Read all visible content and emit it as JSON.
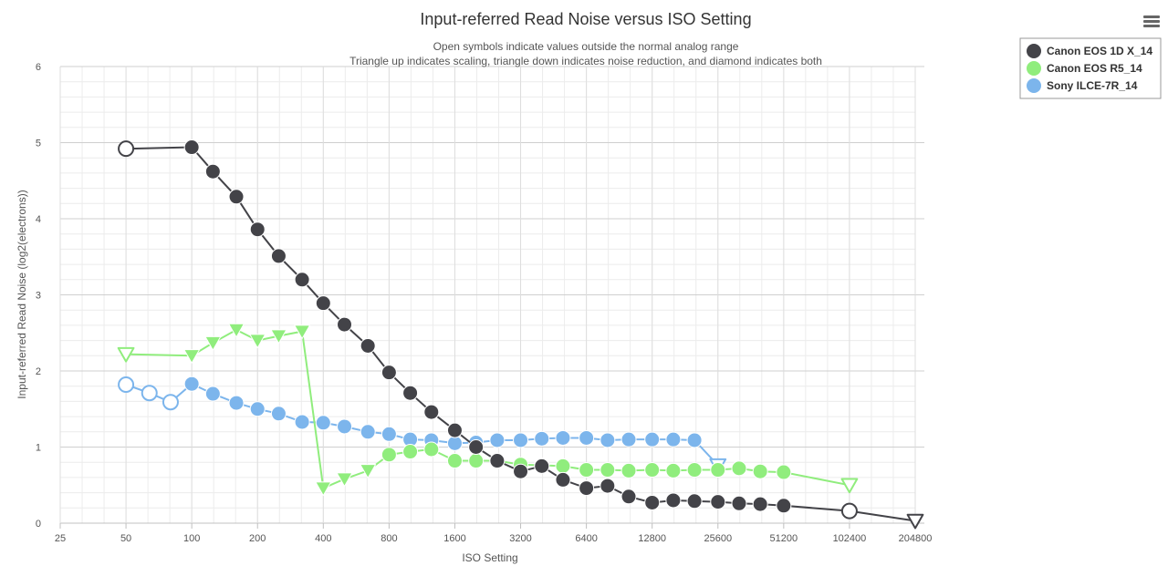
{
  "chart_data": {
    "type": "line",
    "title": "Input-referred Read Noise versus ISO Setting",
    "subtitle_lines": [
      "Open symbols indicate values outside the normal analog range",
      "Triangle up indicates scaling, triangle down indicates noise reduction, and diamond indicates both"
    ],
    "xlabel": "ISO Setting",
    "ylabel": "Input-referred Read Noise (log2(electrons))",
    "x_scale": "log2",
    "xlim": [
      25,
      204800
    ],
    "ylim": [
      0,
      6
    ],
    "x_ticks": [
      25,
      50,
      100,
      200,
      400,
      800,
      1600,
      3200,
      6400,
      12800,
      25600,
      51200,
      102400,
      204800
    ],
    "y_ticks": [
      0,
      1,
      2,
      3,
      4,
      5,
      6
    ],
    "grid": true,
    "legend_position": "top-right",
    "series": [
      {
        "name": "Canon EOS 1D X_14",
        "color": "#434348",
        "points": [
          {
            "x": 50,
            "y": 4.92,
            "m": "circle-open"
          },
          {
            "x": 100,
            "y": 4.94,
            "m": "circle"
          },
          {
            "x": 125,
            "y": 4.62,
            "m": "circle"
          },
          {
            "x": 160,
            "y": 4.29,
            "m": "circle"
          },
          {
            "x": 200,
            "y": 3.86,
            "m": "circle"
          },
          {
            "x": 250,
            "y": 3.51,
            "m": "circle"
          },
          {
            "x": 320,
            "y": 3.2,
            "m": "circle"
          },
          {
            "x": 400,
            "y": 2.89,
            "m": "circle"
          },
          {
            "x": 500,
            "y": 2.61,
            "m": "circle"
          },
          {
            "x": 640,
            "y": 2.33,
            "m": "circle"
          },
          {
            "x": 800,
            "y": 1.98,
            "m": "circle"
          },
          {
            "x": 1000,
            "y": 1.71,
            "m": "circle"
          },
          {
            "x": 1250,
            "y": 1.46,
            "m": "circle"
          },
          {
            "x": 1600,
            "y": 1.22,
            "m": "circle"
          },
          {
            "x": 2000,
            "y": 1.0,
            "m": "circle"
          },
          {
            "x": 2500,
            "y": 0.82,
            "m": "circle"
          },
          {
            "x": 3200,
            "y": 0.68,
            "m": "circle"
          },
          {
            "x": 4000,
            "y": 0.75,
            "m": "circle"
          },
          {
            "x": 5000,
            "y": 0.57,
            "m": "circle"
          },
          {
            "x": 6400,
            "y": 0.46,
            "m": "circle"
          },
          {
            "x": 8000,
            "y": 0.49,
            "m": "circle"
          },
          {
            "x": 10000,
            "y": 0.35,
            "m": "circle"
          },
          {
            "x": 12800,
            "y": 0.27,
            "m": "circle"
          },
          {
            "x": 16000,
            "y": 0.3,
            "m": "circle"
          },
          {
            "x": 20000,
            "y": 0.29,
            "m": "circle"
          },
          {
            "x": 25600,
            "y": 0.28,
            "m": "circle"
          },
          {
            "x": 32000,
            "y": 0.26,
            "m": "circle"
          },
          {
            "x": 40000,
            "y": 0.25,
            "m": "circle"
          },
          {
            "x": 51200,
            "y": 0.23,
            "m": "circle"
          },
          {
            "x": 102400,
            "y": 0.16,
            "m": "circle-open"
          },
          {
            "x": 204800,
            "y": 0.03,
            "m": "tri-down-open"
          }
        ]
      },
      {
        "name": "Canon EOS R5_14",
        "color": "#90ed7d",
        "points": [
          {
            "x": 50,
            "y": 2.22,
            "m": "tri-down-open"
          },
          {
            "x": 100,
            "y": 2.2,
            "m": "tri-down"
          },
          {
            "x": 125,
            "y": 2.37,
            "m": "tri-down"
          },
          {
            "x": 160,
            "y": 2.54,
            "m": "tri-down"
          },
          {
            "x": 200,
            "y": 2.4,
            "m": "tri-down"
          },
          {
            "x": 250,
            "y": 2.46,
            "m": "tri-down"
          },
          {
            "x": 320,
            "y": 2.52,
            "m": "tri-down"
          },
          {
            "x": 400,
            "y": 0.46,
            "m": "tri-down"
          },
          {
            "x": 500,
            "y": 0.58,
            "m": "tri-down"
          },
          {
            "x": 640,
            "y": 0.69,
            "m": "tri-down"
          },
          {
            "x": 800,
            "y": 0.9,
            "m": "circle"
          },
          {
            "x": 1000,
            "y": 0.94,
            "m": "circle"
          },
          {
            "x": 1250,
            "y": 0.97,
            "m": "circle"
          },
          {
            "x": 1600,
            "y": 0.82,
            "m": "circle"
          },
          {
            "x": 2000,
            "y": 0.82,
            "m": "circle"
          },
          {
            "x": 2500,
            "y": 0.82,
            "m": "circle"
          },
          {
            "x": 3200,
            "y": 0.77,
            "m": "circle"
          },
          {
            "x": 4000,
            "y": 0.76,
            "m": "circle"
          },
          {
            "x": 5000,
            "y": 0.75,
            "m": "circle"
          },
          {
            "x": 6400,
            "y": 0.7,
            "m": "circle"
          },
          {
            "x": 8000,
            "y": 0.7,
            "m": "circle"
          },
          {
            "x": 10000,
            "y": 0.69,
            "m": "circle"
          },
          {
            "x": 12800,
            "y": 0.7,
            "m": "circle"
          },
          {
            "x": 16000,
            "y": 0.69,
            "m": "circle"
          },
          {
            "x": 20000,
            "y": 0.7,
            "m": "circle"
          },
          {
            "x": 25600,
            "y": 0.7,
            "m": "circle"
          },
          {
            "x": 32000,
            "y": 0.72,
            "m": "circle"
          },
          {
            "x": 40000,
            "y": 0.68,
            "m": "circle"
          },
          {
            "x": 51200,
            "y": 0.67,
            "m": "circle"
          },
          {
            "x": 102400,
            "y": 0.5,
            "m": "tri-down-open"
          }
        ]
      },
      {
        "name": "Sony ILCE-7R_14",
        "color": "#7cb5ec",
        "points": [
          {
            "x": 50,
            "y": 1.82,
            "m": "circle-open"
          },
          {
            "x": 64,
            "y": 1.71,
            "m": "circle-open"
          },
          {
            "x": 80,
            "y": 1.59,
            "m": "circle-open"
          },
          {
            "x": 100,
            "y": 1.83,
            "m": "circle"
          },
          {
            "x": 125,
            "y": 1.7,
            "m": "circle"
          },
          {
            "x": 160,
            "y": 1.58,
            "m": "circle"
          },
          {
            "x": 200,
            "y": 1.5,
            "m": "circle"
          },
          {
            "x": 250,
            "y": 1.44,
            "m": "circle"
          },
          {
            "x": 320,
            "y": 1.33,
            "m": "circle"
          },
          {
            "x": 400,
            "y": 1.32,
            "m": "circle"
          },
          {
            "x": 500,
            "y": 1.27,
            "m": "circle"
          },
          {
            "x": 640,
            "y": 1.2,
            "m": "circle"
          },
          {
            "x": 800,
            "y": 1.17,
            "m": "circle"
          },
          {
            "x": 1000,
            "y": 1.1,
            "m": "circle"
          },
          {
            "x": 1250,
            "y": 1.09,
            "m": "circle"
          },
          {
            "x": 1600,
            "y": 1.05,
            "m": "circle"
          },
          {
            "x": 2000,
            "y": 1.06,
            "m": "circle"
          },
          {
            "x": 2500,
            "y": 1.09,
            "m": "circle"
          },
          {
            "x": 3200,
            "y": 1.09,
            "m": "circle"
          },
          {
            "x": 4000,
            "y": 1.11,
            "m": "circle"
          },
          {
            "x": 5000,
            "y": 1.12,
            "m": "circle"
          },
          {
            "x": 6400,
            "y": 1.12,
            "m": "circle"
          },
          {
            "x": 8000,
            "y": 1.09,
            "m": "circle"
          },
          {
            "x": 10000,
            "y": 1.1,
            "m": "circle"
          },
          {
            "x": 12800,
            "y": 1.1,
            "m": "circle"
          },
          {
            "x": 16000,
            "y": 1.1,
            "m": "circle"
          },
          {
            "x": 20000,
            "y": 1.09,
            "m": "circle"
          },
          {
            "x": 25600,
            "y": 0.76,
            "m": "tri-down-open"
          }
        ]
      }
    ]
  },
  "menu": {
    "icon": "hamburger-menu-icon"
  }
}
